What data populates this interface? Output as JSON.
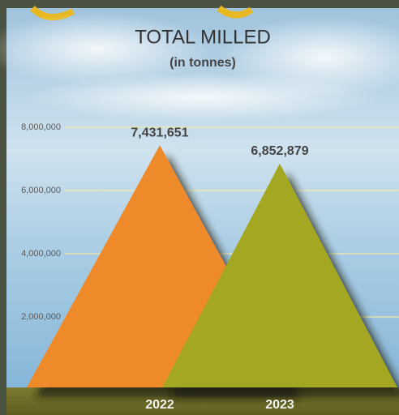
{
  "chart_data": {
    "type": "triangle-bar",
    "title": "TOTAL MILLED",
    "subtitle": "(in tonnes)",
    "categories": [
      "2022",
      "2023"
    ],
    "values": [
      7431651,
      6852879
    ],
    "value_labels": [
      "7,431,651",
      "6,852,879"
    ],
    "colors": [
      "#ee8a2c",
      "#a4a722"
    ],
    "ylim": [
      0,
      8000000
    ],
    "yticks": [
      {
        "value": 2000000,
        "label": "2,000,000"
      },
      {
        "value": 4000000,
        "label": "4,000,000"
      },
      {
        "value": 6000000,
        "label": "6,000,000"
      },
      {
        "value": 8000000,
        "label": "8,000,000"
      }
    ],
    "grid": true
  }
}
